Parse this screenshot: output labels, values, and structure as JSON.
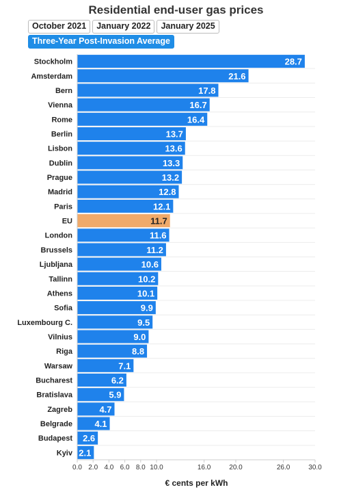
{
  "title": "Residential end-user gas prices",
  "tabs": [
    {
      "label": "October 2021",
      "active": false
    },
    {
      "label": "January 2022",
      "active": false
    },
    {
      "label": "January 2025",
      "active": false
    },
    {
      "label": "Three-Year Post-Invasion Average",
      "active": true
    }
  ],
  "colors": {
    "bar": "#1f82eb",
    "highlight": "#f0aa6a",
    "accent": "#1f8de6"
  },
  "chart_data": {
    "type": "bar",
    "orientation": "horizontal",
    "title": "Residential end-user gas prices",
    "xlabel": "€ cents per kWh",
    "ylabel": "",
    "xlim": [
      0,
      30
    ],
    "x_ticks": [
      "0.0",
      "2.0",
      "4.0",
      "6.0",
      "8.0",
      "10.0",
      "16.0",
      "20.0",
      "26.0",
      "30.0"
    ],
    "x_tick_values": [
      0,
      2,
      4,
      6,
      8,
      10,
      16,
      20,
      26,
      30
    ],
    "grid": true,
    "highlight": "EU",
    "categories": [
      "Stockholm",
      "Amsterdam",
      "Bern",
      "Vienna",
      "Rome",
      "Berlin",
      "Lisbon",
      "Dublin",
      "Prague",
      "Madrid",
      "Paris",
      "EU",
      "London",
      "Brussels",
      "Ljubljana",
      "Tallinn",
      "Athens",
      "Sofia",
      "Luxembourg C.",
      "Vilnius",
      "Riga",
      "Warsaw",
      "Bucharest",
      "Bratislava",
      "Zagreb",
      "Belgrade",
      "Budapest",
      "Kyiv"
    ],
    "values": [
      28.7,
      21.6,
      17.8,
      16.7,
      16.4,
      13.7,
      13.6,
      13.3,
      13.2,
      12.8,
      12.1,
      11.7,
      11.6,
      11.2,
      10.6,
      10.2,
      10.1,
      9.9,
      9.5,
      9.0,
      8.8,
      7.1,
      6.2,
      5.9,
      4.7,
      4.1,
      2.6,
      2.1
    ],
    "value_labels": [
      "28.7",
      "21.6",
      "17.8",
      "16.7",
      "16.4",
      "13.7",
      "13.6",
      "13.3",
      "13.2",
      "12.8",
      "12.1",
      "11.7",
      "11.6",
      "11.2",
      "10.6",
      "10.2",
      "10.1",
      "9.9",
      "9.5",
      "9.0",
      "8.8",
      "7.1",
      "6.2",
      "5.9",
      "4.7",
      "4.1",
      "2.6",
      "2.1"
    ]
  }
}
